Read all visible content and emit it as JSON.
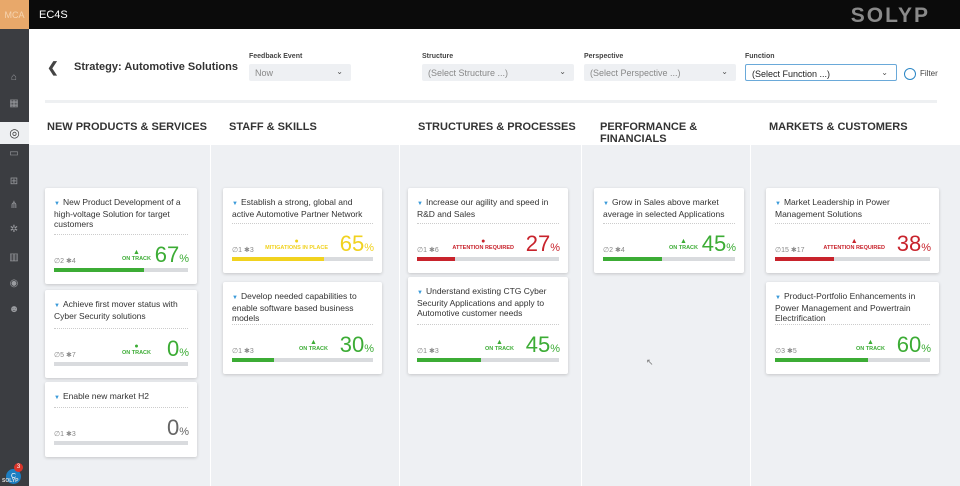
{
  "topbar": {
    "logo": "MCA",
    "app_name": "EC4S",
    "brand": "SOLYP"
  },
  "sidebar": {
    "avatar_initial": "C",
    "badge_count": "3",
    "footer": "SOLYP",
    "icons": [
      "home-icon",
      "grid-icon",
      "target-icon",
      "presentation-icon",
      "org-chart-icon",
      "network-icon",
      "settings-icon",
      "building-icon",
      "location-icon",
      "users-icon"
    ]
  },
  "header": {
    "back": "❮",
    "title": "Strategy: Automotive Solutions"
  },
  "filters": {
    "feedback_event": {
      "label": "Feedback Event",
      "value": "Now"
    },
    "structure": {
      "label": "Structure",
      "value": "(Select Structure ...)"
    },
    "perspective": {
      "label": "Perspective",
      "value": "(Select Perspective ...)"
    },
    "function": {
      "label": "Function",
      "value": "(Select Function ...)"
    },
    "filter_label": "Filter"
  },
  "columns": [
    {
      "title": "NEW PRODUCTS & SERVICES",
      "cards": [
        {
          "title": "New Product Development of a high-voltage Solution for target customers",
          "links": "2",
          "stars": "4",
          "status": "ON TRACK",
          "status_mark": "▲",
          "percent": "67",
          "progress": 0.67,
          "color": "green"
        },
        {
          "title": "Achieve first mover status with Cyber Security solutions",
          "links": "5",
          "stars": "7",
          "status": "ON TRACK",
          "status_mark": "●",
          "percent": "0",
          "progress": 0,
          "color": "green"
        },
        {
          "title": "Enable new market H2",
          "links": "1",
          "stars": "3",
          "status": "",
          "status_mark": "",
          "percent": "0",
          "progress": 0,
          "color": "grey"
        }
      ]
    },
    {
      "title": "STAFF & SKILLS",
      "cards": [
        {
          "title": "Establish a strong, global and active Automotive Partner Network",
          "links": "1",
          "stars": "3",
          "status": "MITIGATIONS IN PLACE",
          "status_mark": "●",
          "percent": "65",
          "progress": 0.65,
          "color": "yellow"
        },
        {
          "title": "Develop needed capabilities to enable software based business models",
          "links": "1",
          "stars": "3",
          "status": "ON TRACK",
          "status_mark": "▲",
          "percent": "30",
          "progress": 0.3,
          "color": "green"
        }
      ]
    },
    {
      "title": "STRUCTURES & PROCESSES",
      "cards": [
        {
          "title": "Increase our agility and speed in R&D and Sales",
          "links": "1",
          "stars": "6",
          "status": "ATTENTION REQUIRED",
          "status_mark": "●",
          "percent": "27",
          "progress": 0.27,
          "color": "red"
        },
        {
          "title": "Understand existing CTG Cyber Security Applications and apply to Automotive customer needs",
          "links": "1",
          "stars": "3",
          "status": "ON TRACK",
          "status_mark": "▲",
          "percent": "45",
          "progress": 0.45,
          "color": "green"
        }
      ]
    },
    {
      "title": "PERFORMANCE & FINANCIALS",
      "cards": [
        {
          "title": "Grow in Sales above market average in selected Applications",
          "links": "2",
          "stars": "4",
          "status": "ON TRACK",
          "status_mark": "▲",
          "percent": "45",
          "progress": 0.45,
          "color": "green"
        }
      ]
    },
    {
      "title": "MARKETS & CUSTOMERS",
      "cards": [
        {
          "title": "Market Leadership in Power Management Solutions",
          "links": "15",
          "stars": "17",
          "status": "ATTENTION REQUIRED",
          "status_mark": "▲",
          "percent": "38",
          "progress": 0.38,
          "color": "red"
        },
        {
          "title": "Product-Portfolio Enhancements in Power Management and Powertrain Electrification",
          "links": "3",
          "stars": "5",
          "status": "ON TRACK",
          "status_mark": "▲",
          "percent": "60",
          "progress": 0.6,
          "color": "green"
        }
      ]
    }
  ]
}
